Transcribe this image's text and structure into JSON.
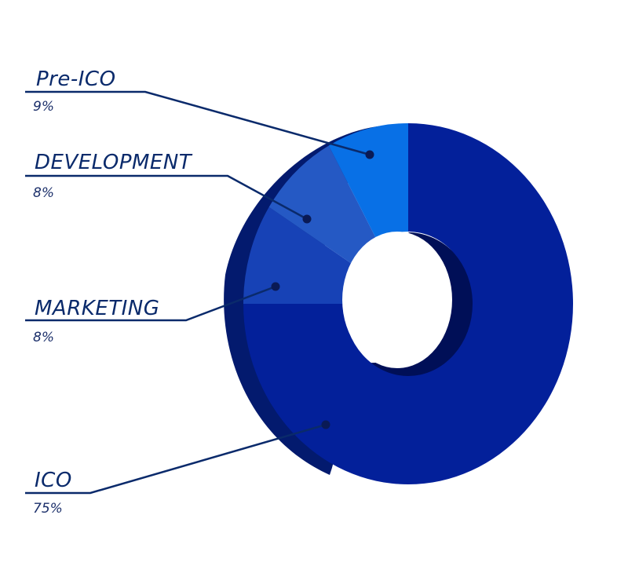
{
  "chart_data": {
    "type": "pie",
    "style": "3d-donut",
    "title": "",
    "slices": [
      {
        "label": "ICO",
        "value": 75,
        "value_label": "75%",
        "color": "#03209a",
        "side_color": "#031a6e"
      },
      {
        "label": "Pre-ICO",
        "value": 9,
        "value_label": "9%",
        "color": "#1742b6",
        "side_color": "#10347e"
      },
      {
        "label": "DEVELOPMENT",
        "value": 8,
        "value_label": "8%",
        "color": "#2559c4",
        "side_color": "#1b3f88"
      },
      {
        "label": "MARKETING",
        "value": 8,
        "value_label": "8%",
        "color": "#0870e6",
        "side_color": "#05469c"
      }
    ],
    "legend": "none",
    "annotations": "callout lines with dot markers"
  }
}
